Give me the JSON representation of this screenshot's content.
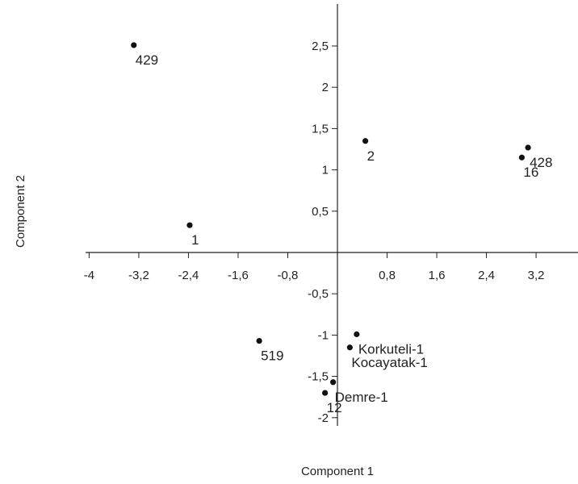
{
  "chart_data": {
    "type": "scatter",
    "title": "",
    "xlabel": "Component 1",
    "ylabel": "Component 2",
    "xlim": [
      -4,
      4
    ],
    "ylim": [
      -2,
      3
    ],
    "grid": false,
    "x_ticks": [
      {
        "value": -4,
        "label": "-4"
      },
      {
        "value": -3.2,
        "label": "-3,2"
      },
      {
        "value": -2.4,
        "label": "-2,4"
      },
      {
        "value": -1.6,
        "label": "-1,6"
      },
      {
        "value": -0.8,
        "label": "-0,8"
      },
      {
        "value": 0.8,
        "label": "0,8"
      },
      {
        "value": 1.6,
        "label": "1,6"
      },
      {
        "value": 2.4,
        "label": "2,4"
      },
      {
        "value": 3.2,
        "label": "3,2"
      }
    ],
    "y_ticks": [
      {
        "value": -2,
        "label": "-2"
      },
      {
        "value": -1.5,
        "label": "-1,5"
      },
      {
        "value": -1,
        "label": "-1"
      },
      {
        "value": -0.5,
        "label": "-0,5"
      },
      {
        "value": 0.5,
        "label": "0,5"
      },
      {
        "value": 1,
        "label": "1"
      },
      {
        "value": 1.5,
        "label": "1,5"
      },
      {
        "value": 2,
        "label": "2"
      },
      {
        "value": 2.5,
        "label": "2,5"
      }
    ],
    "points": [
      {
        "label": "429",
        "x": -3.28,
        "y": 2.51
      },
      {
        "label": "1",
        "x": -2.38,
        "y": 0.33
      },
      {
        "label": "2",
        "x": 0.45,
        "y": 1.35
      },
      {
        "label": "428",
        "x": 3.07,
        "y": 1.27
      },
      {
        "label": "16",
        "x": 2.97,
        "y": 1.15
      },
      {
        "label": "519",
        "x": -1.26,
        "y": -1.07
      },
      {
        "label": "Korkuteli-1",
        "x": 0.31,
        "y": -0.99
      },
      {
        "label": "Kocayatak-1",
        "x": 0.2,
        "y": -1.15
      },
      {
        "label": "Demre-1",
        "x": -0.07,
        "y": -1.57
      },
      {
        "label": "12",
        "x": -0.2,
        "y": -1.7
      }
    ]
  }
}
